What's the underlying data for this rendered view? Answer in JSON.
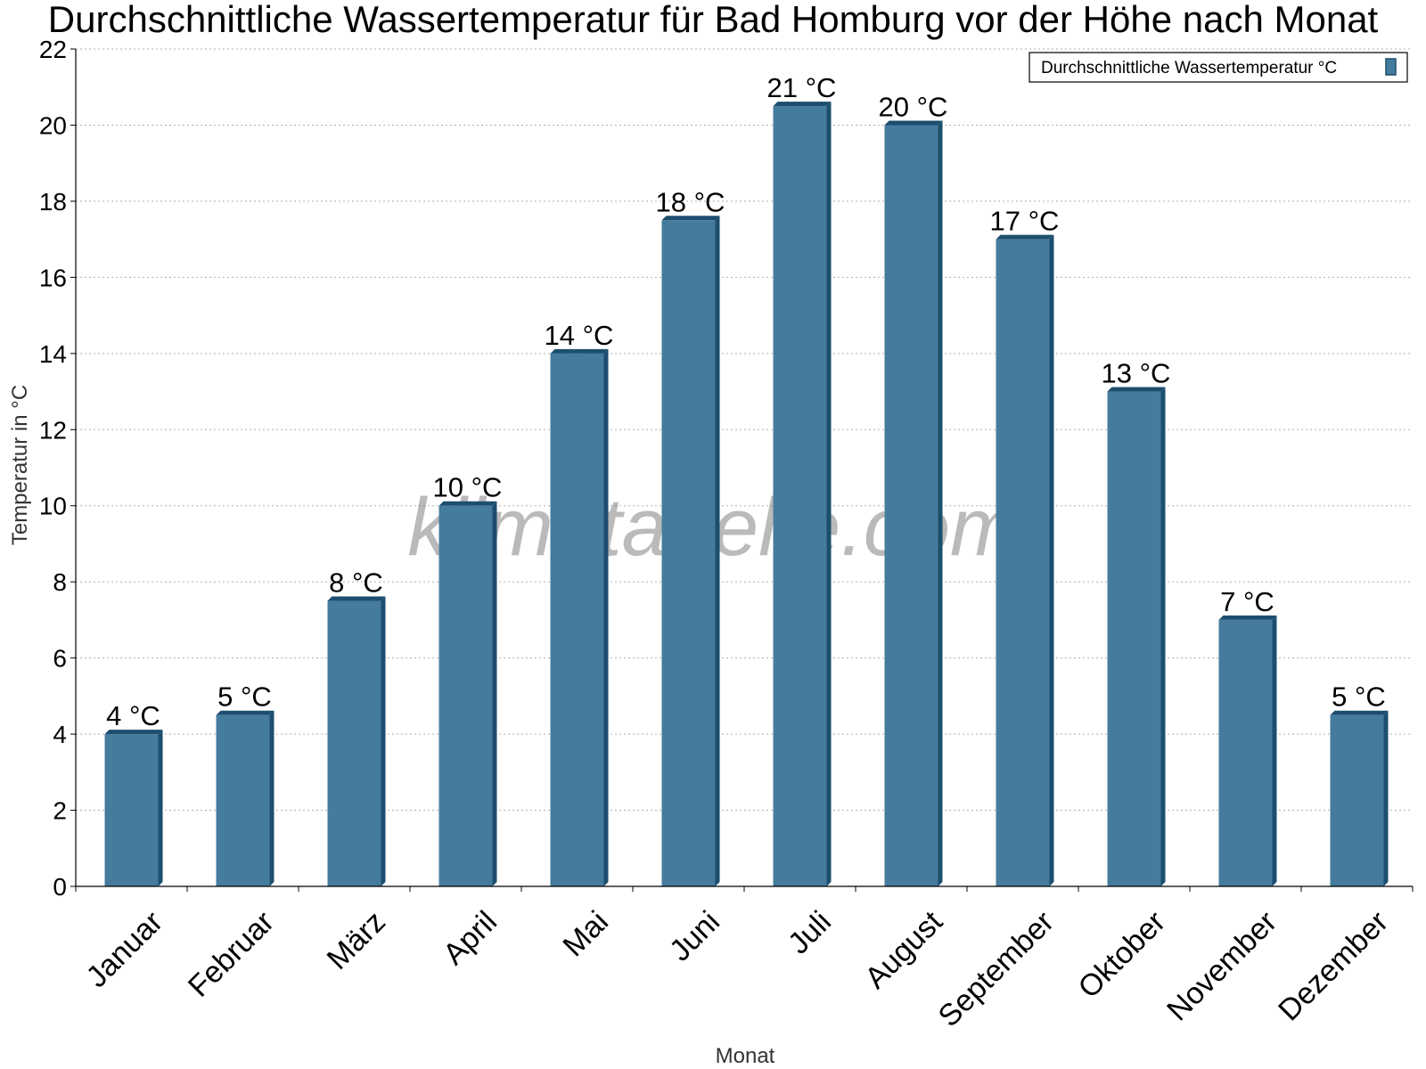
{
  "chart_data": {
    "type": "bar",
    "title": "Durchschnittliche Wassertemperatur für Bad Homburg vor der Höhe nach Monat",
    "xlabel": "Monat",
    "ylabel": "Temperatur in °C",
    "ylim": [
      0,
      22
    ],
    "yticks": [
      0,
      2,
      4,
      6,
      8,
      10,
      12,
      14,
      16,
      18,
      20,
      22
    ],
    "grid": true,
    "legend_position": "top-right",
    "categories": [
      "Januar",
      "Februar",
      "März",
      "April",
      "Mai",
      "Juni",
      "Juli",
      "August",
      "September",
      "Oktober",
      "November",
      "Dezember"
    ],
    "series": [
      {
        "name": "Durchschnittliche Wassertemperatur °C",
        "values": [
          4,
          4.5,
          7.5,
          10,
          14,
          17.5,
          20.5,
          20,
          17,
          13,
          7,
          4.5
        ],
        "labels": [
          "4 °C",
          "5 °C",
          "8 °C",
          "10 °C",
          "14 °C",
          "18 °C",
          "21 °C",
          "20 °C",
          "17 °C",
          "13 °C",
          "7 °C",
          "5 °C"
        ],
        "color": "#457b9d",
        "edge_color": "#1d4e6e"
      }
    ],
    "watermark": "klimatabelle.com"
  }
}
